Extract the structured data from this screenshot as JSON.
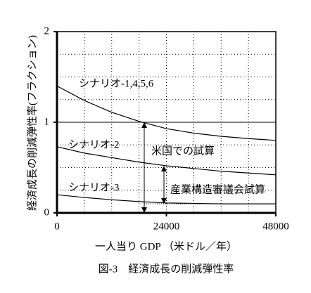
{
  "chart_data": {
    "type": "line",
    "title": "図-3　経済成長の削減弾性率",
    "x_label": "一人当り GDP （米ドル／年）",
    "y_label": "経済成長の削減弾性率(フラクション)",
    "x": [
      0,
      6000,
      12000,
      18000,
      24000,
      30000,
      36000,
      42000,
      48000
    ],
    "series": [
      {
        "name": "シナリオ-1,4,5,6",
        "color": "#000000",
        "values": [
          1.4,
          1.24,
          1.11,
          1.01,
          0.93,
          0.88,
          0.845,
          0.82,
          0.8
        ]
      },
      {
        "name": "シナリオ-2",
        "color": "#000000",
        "values": [
          0.73,
          0.66,
          0.61,
          0.56,
          0.52,
          0.49,
          0.46,
          0.44,
          0.42
        ]
      },
      {
        "name": "シナリオ-3",
        "color": "#000000",
        "values": [
          0.2,
          0.17,
          0.145,
          0.125,
          0.11,
          0.105,
          0.1,
          0.1,
          0.1
        ]
      }
    ],
    "annotations": [
      "米国での試算",
      "産業構造審議会試算"
    ],
    "xlim": [
      0,
      48000
    ],
    "xticks": [
      0,
      24000,
      48000
    ],
    "ylim": [
      0,
      2
    ],
    "yticks": [
      0,
      1,
      2
    ],
    "x_grid": [
      6000,
      12000,
      18000,
      24000,
      30000,
      36000,
      42000
    ],
    "y_grid": [
      0.25,
      0.5,
      0.75,
      1,
      1.25,
      1.5,
      1.75
    ],
    "grid": true
  }
}
